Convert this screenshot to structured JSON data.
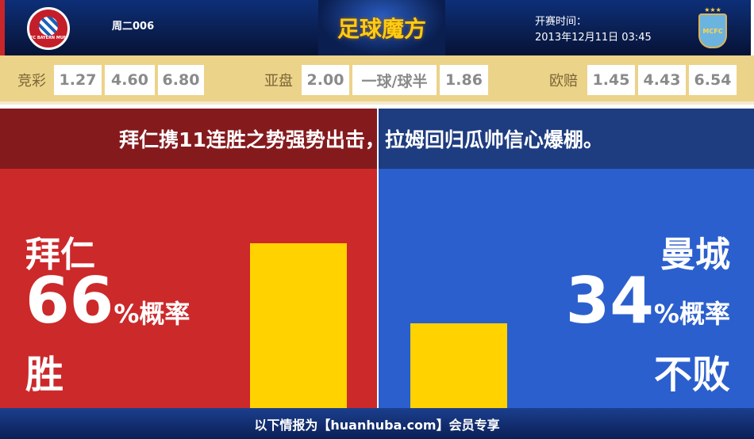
{
  "header": {
    "match_code": "周二006",
    "brand": "足球魔方",
    "kickoff_label": "开赛时间：",
    "kickoff_time": "2013年12月11日 03:45",
    "home_logo_text": "FC BAYERN MÜNCHEN",
    "away_logo_text": "MCFC"
  },
  "odds": {
    "jingcai": {
      "label": "竞彩",
      "values": [
        "1.27",
        "4.60",
        "6.80"
      ]
    },
    "asian": {
      "label": "亚盘",
      "values": [
        "2.00",
        "一球/球半",
        "1.86"
      ]
    },
    "euro": {
      "label": "欧赔",
      "values": [
        "1.45",
        "4.43",
        "6.54"
      ]
    }
  },
  "headline": "拜仁携11连胜之势强势出击，拉姆回归瓜帅信心爆棚。",
  "home": {
    "team": "拜仁",
    "percent": "66",
    "percent_suffix": "%概率",
    "outcome": "胜",
    "value": 66
  },
  "away": {
    "team": "曼城",
    "percent": "34",
    "percent_suffix": "%概率",
    "outcome": "不败",
    "value": 34
  },
  "colors": {
    "home": "#cc292b",
    "away": "#2b5fcd",
    "bar": "#ffd200"
  },
  "footer": "以下情报为【huanhuba.com】会员专享"
}
